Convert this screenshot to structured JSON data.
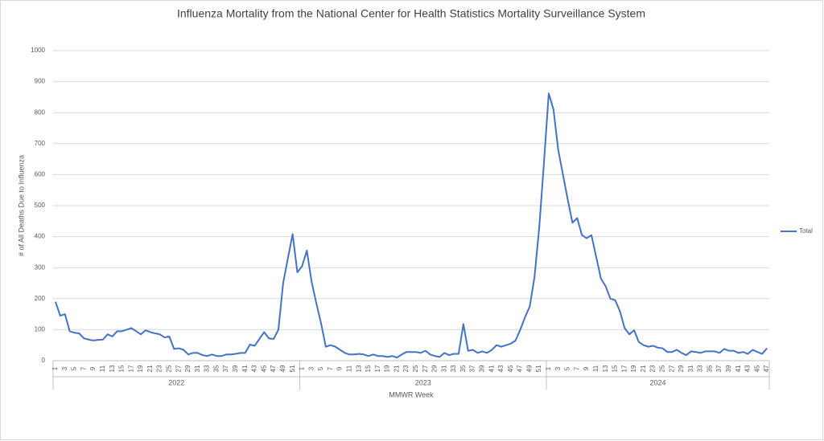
{
  "chart_data": {
    "type": "line",
    "title": "Influenza Mortality from the National Center for Health Statistics Mortality Surveillance System",
    "x_label": "MMWR Week",
    "y_label": "# of All Deaths Due to Influenza",
    "groups": [
      {
        "name": "2022",
        "categories": [
          1,
          null,
          3,
          null,
          5,
          null,
          7,
          null,
          9,
          null,
          11,
          null,
          13,
          null,
          15,
          null,
          17,
          null,
          19,
          null,
          21,
          null,
          23,
          null,
          25,
          null,
          27,
          null,
          29,
          null,
          31,
          null,
          33,
          null,
          35,
          null,
          37,
          null,
          39,
          null,
          41,
          null,
          43,
          null,
          45,
          null,
          47,
          null,
          49,
          null,
          51,
          null
        ]
      },
      {
        "name": "2023",
        "categories": [
          1,
          null,
          3,
          null,
          5,
          null,
          7,
          null,
          9,
          null,
          11,
          null,
          13,
          null,
          15,
          null,
          17,
          null,
          19,
          null,
          21,
          null,
          23,
          null,
          25,
          null,
          27,
          null,
          29,
          null,
          31,
          null,
          33,
          null,
          35,
          null,
          37,
          null,
          39,
          null,
          41,
          null,
          43,
          null,
          45,
          null,
          47,
          null,
          49,
          null,
          51,
          null
        ]
      },
      {
        "name": "2024",
        "categories": [
          1,
          null,
          3,
          null,
          5,
          null,
          7,
          null,
          9,
          null,
          11,
          null,
          13,
          null,
          15,
          null,
          17,
          null,
          19,
          null,
          21,
          null,
          23,
          null,
          25,
          null,
          27,
          null,
          29,
          null,
          31,
          null,
          33,
          null,
          35,
          null,
          37,
          null,
          39,
          null,
          41,
          null,
          43,
          null,
          45,
          null,
          47
        ]
      }
    ],
    "series": [
      {
        "name": "Total",
        "color": "#4472c4",
        "values": [
          190,
          145,
          150,
          95,
          90,
          88,
          72,
          68,
          65,
          67,
          68,
          85,
          78,
          95,
          95,
          100,
          105,
          95,
          85,
          98,
          92,
          88,
          85,
          75,
          78,
          38,
          40,
          35,
          20,
          25,
          25,
          18,
          15,
          20,
          15,
          15,
          20,
          20,
          22,
          25,
          25,
          52,
          48,
          70,
          92,
          72,
          70,
          100,
          250,
          330,
          408,
          285,
          305,
          355,
          255,
          185,
          120,
          45,
          50,
          45,
          35,
          25,
          20,
          20,
          22,
          20,
          15,
          20,
          15,
          15,
          12,
          15,
          10,
          20,
          28,
          28,
          28,
          25,
          32,
          20,
          15,
          12,
          25,
          18,
          22,
          22,
          118,
          32,
          35,
          25,
          30,
          25,
          35,
          50,
          45,
          50,
          55,
          65,
          100,
          140,
          175,
          270,
          430,
          640,
          862,
          810,
          680,
          600,
          520,
          445,
          460,
          405,
          395,
          405,
          335,
          265,
          240,
          200,
          195,
          160,
          105,
          85,
          98,
          60,
          50,
          45,
          48,
          42,
          40,
          28,
          28,
          35,
          25,
          18,
          30,
          28,
          25,
          30,
          30,
          30,
          25,
          38,
          32,
          32,
          25,
          28,
          22,
          35,
          28,
          22,
          40
        ]
      }
    ],
    "ylim": [
      0,
      1000
    ],
    "yticks": [
      0,
      100,
      200,
      300,
      400,
      500,
      600,
      700,
      800,
      900,
      1000
    ],
    "grid": true,
    "legend": "right"
  }
}
